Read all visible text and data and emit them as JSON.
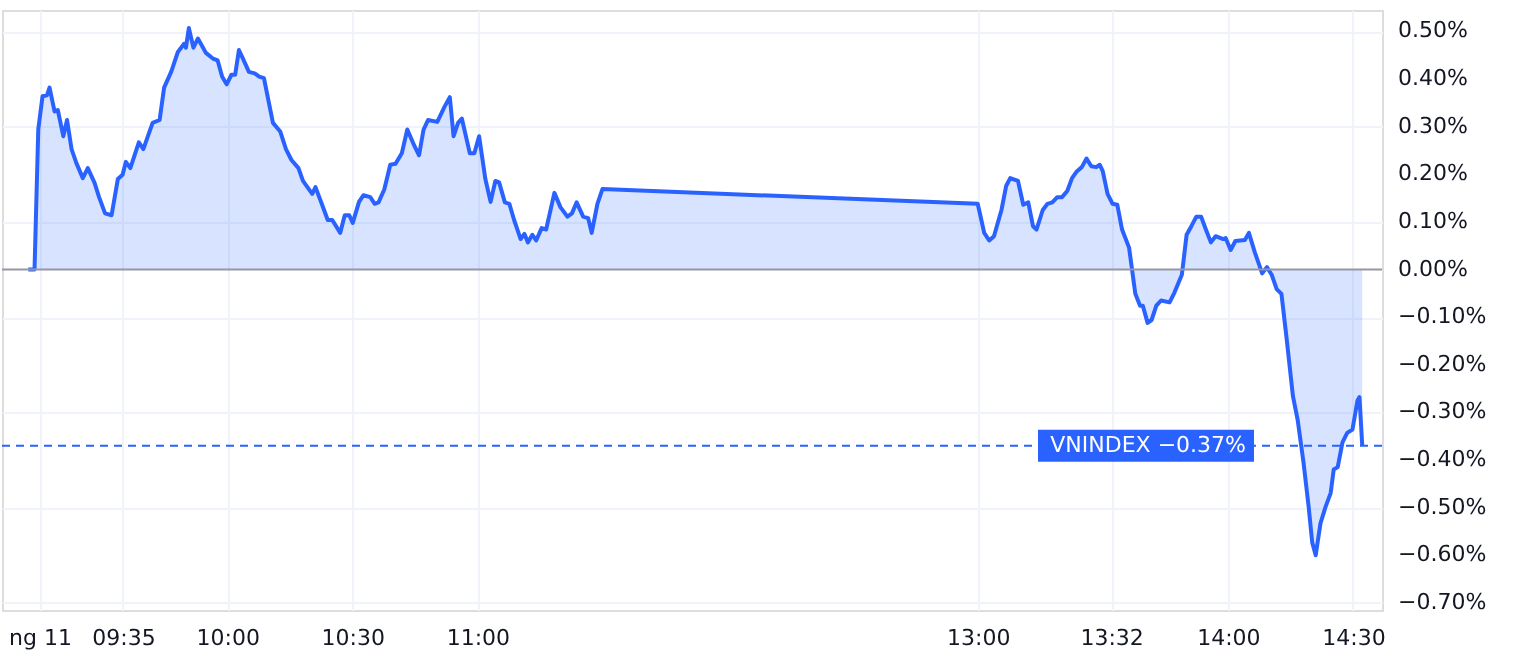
{
  "chart_data": {
    "type": "area",
    "x": [
      9.205,
      9.23,
      9.245,
      9.262,
      9.28,
      9.29,
      9.31,
      9.323,
      9.345,
      9.36,
      9.378,
      9.397,
      9.423,
      9.443,
      9.47,
      9.488,
      9.512,
      9.538,
      9.563,
      9.582,
      9.595,
      9.613,
      9.647,
      9.665,
      9.702,
      9.73,
      9.748,
      9.777,
      9.803,
      9.828,
      9.835,
      9.847,
      9.865,
      9.883,
      9.915,
      9.943,
      9.962,
      9.98,
      9.998,
      10.017,
      10.032,
      10.047,
      10.063,
      10.087,
      10.11,
      10.128,
      10.147,
      10.183,
      10.212,
      10.235,
      10.257,
      10.285,
      10.303,
      10.34,
      10.353,
      10.378,
      10.402,
      10.42,
      10.452,
      10.47,
      10.488,
      10.502,
      10.527,
      10.545,
      10.572,
      10.59,
      10.605,
      10.628,
      10.652,
      10.673,
      10.698,
      10.72,
      10.748,
      10.767,
      10.785,
      10.803,
      10.84,
      10.868,
      10.89,
      10.905,
      10.923,
      10.938,
      10.97,
      10.988,
      11.007,
      11.032,
      11.053,
      11.072,
      11.087,
      11.11,
      11.128,
      11.147,
      11.173,
      11.188,
      11.202,
      11.22,
      11.235,
      11.257,
      11.275,
      11.308,
      11.332,
      11.36,
      11.378,
      11.397,
      11.423,
      11.443,
      11.457,
      11.48,
      11.5,
      13.0,
      13.026,
      13.046,
      13.065,
      13.095,
      13.114,
      13.13,
      13.161,
      13.182,
      13.202,
      13.221,
      13.235,
      13.26,
      13.279,
      13.298,
      13.318,
      13.337,
      13.358,
      13.377,
      13.396,
      13.416,
      13.435,
      13.454,
      13.474,
      13.488,
      13.5,
      13.519,
      13.539,
      13.558,
      13.577,
      13.605,
      13.63,
      13.649,
      13.66,
      13.679,
      13.695,
      13.714,
      13.733,
      13.767,
      13.786,
      13.816,
      13.835,
      13.854,
      13.874,
      13.893,
      13.912,
      13.932,
      13.951,
      13.981,
      13.991,
      14.011,
      14.03,
      14.068,
      14.084,
      14.107,
      14.137,
      14.156,
      14.175,
      14.195,
      14.214,
      14.235,
      14.26,
      14.279,
      14.302,
      14.323,
      14.337,
      14.351,
      14.37,
      14.39,
      14.411,
      14.423,
      14.439,
      14.458,
      14.477,
      14.498,
      14.518,
      14.526,
      14.537
    ],
    "series": [
      {
        "color": "#2962ff",
        "values": [
          0,
          0,
          0.294,
          0.364,
          0.366,
          0.382,
          0.332,
          0.335,
          0.28,
          0.314,
          0.253,
          0.224,
          0.192,
          0.213,
          0.182,
          0.152,
          0.118,
          0.114,
          0.19,
          0.199,
          0.226,
          0.213,
          0.267,
          0.253,
          0.308,
          0.314,
          0.382,
          0.416,
          0.457,
          0.474,
          0.466,
          0.507,
          0.466,
          0.485,
          0.455,
          0.443,
          0.439,
          0.405,
          0.389,
          0.409,
          0.409,
          0.461,
          0.443,
          0.415,
          0.412,
          0.405,
          0.402,
          0.308,
          0.29,
          0.253,
          0.23,
          0.213,
          0.186,
          0.159,
          0.173,
          0.138,
          0.104,
          0.104,
          0.077,
          0.114,
          0.114,
          0.098,
          0.142,
          0.156,
          0.152,
          0.138,
          0.141,
          0.168,
          0.22,
          0.222,
          0.244,
          0.294,
          0.26,
          0.24,
          0.294,
          0.314,
          0.31,
          0.341,
          0.362,
          0.28,
          0.308,
          0.317,
          0.244,
          0.244,
          0.28,
          0.19,
          0.142,
          0.186,
          0.183,
          0.141,
          0.138,
          0.104,
          0.064,
          0.075,
          0.057,
          0.073,
          0.061,
          0.087,
          0.084,
          0.161,
          0.131,
          0.111,
          0.118,
          0.141,
          0.111,
          0.108,
          0.077,
          0.138,
          0.169,
          0.138,
          0.077,
          0.061,
          0.07,
          0.125,
          0.176,
          0.192,
          0.186,
          0.136,
          0.141,
          0.091,
          0.084,
          0.125,
          0.138,
          0.141,
          0.152,
          0.152,
          0.165,
          0.192,
          0.206,
          0.215,
          0.233,
          0.217,
          0.215,
          0.22,
          0.206,
          0.159,
          0.138,
          0.136,
          0.084,
          0.046,
          -0.051,
          -0.076,
          -0.076,
          -0.112,
          -0.106,
          -0.076,
          -0.065,
          -0.069,
          -0.049,
          -0.011,
          0.073,
          0.091,
          0.111,
          0.111,
          0.084,
          0.057,
          0.07,
          0.064,
          0.066,
          0.041,
          0.06,
          0.062,
          0.077,
          0.037,
          -0.008,
          0.005,
          -0.011,
          -0.041,
          -0.051,
          -0.146,
          -0.266,
          -0.316,
          -0.404,
          -0.499,
          -0.573,
          -0.6,
          -0.533,
          -0.499,
          -0.469,
          -0.42,
          -0.415,
          -0.363,
          -0.343,
          -0.336,
          -0.275,
          -0.268,
          -0.37
        ]
      }
    ],
    "xlim": [
      9.1,
      14.616
    ],
    "xticks": [
      {
        "value": 9.25,
        "label": "ng 11"
      },
      {
        "value": 9.583333,
        "label": "09:35"
      },
      {
        "value": 10,
        "label": "10:00"
      },
      {
        "value": 10.5,
        "label": "10:30"
      },
      {
        "value": 11,
        "label": "11:00"
      },
      {
        "value": 13,
        "label": "13:00"
      },
      {
        "value": 13.533333,
        "label": "13:32"
      },
      {
        "value": 14,
        "label": "14:00"
      },
      {
        "value": 14.5,
        "label": "14:30"
      }
    ],
    "ylim": [
      -0.715,
      0.545
    ],
    "yticks": [
      {
        "value": 0.5,
        "label": "0.50%"
      },
      {
        "value": 0.4,
        "label": "0.40%"
      },
      {
        "value": 0.3,
        "label": "0.30%"
      },
      {
        "value": 0.2,
        "label": "0.20%"
      },
      {
        "value": 0.1,
        "label": "0.10%"
      },
      {
        "value": 0,
        "label": "0.00%"
      },
      {
        "value": -0.1,
        "label": "−0.10%"
      },
      {
        "value": -0.2,
        "label": "−0.20%"
      },
      {
        "value": -0.3,
        "label": "−0.30%"
      },
      {
        "value": -0.4,
        "label": "−0.40%"
      },
      {
        "value": -0.5,
        "label": "−0.50%"
      },
      {
        "value": -0.6,
        "label": "−0.60%"
      },
      {
        "value": -0.7,
        "label": "−0.70%"
      }
    ],
    "grid": true,
    "ref_lines": [
      {
        "axis": "y",
        "value": 0,
        "color": "#9598a1",
        "line_style": "solid"
      },
      {
        "axis": "y",
        "value": -0.37,
        "color": "#2962ff",
        "line_style": "dashed",
        "label": "VNINDEX −0.37%"
      }
    ]
  }
}
